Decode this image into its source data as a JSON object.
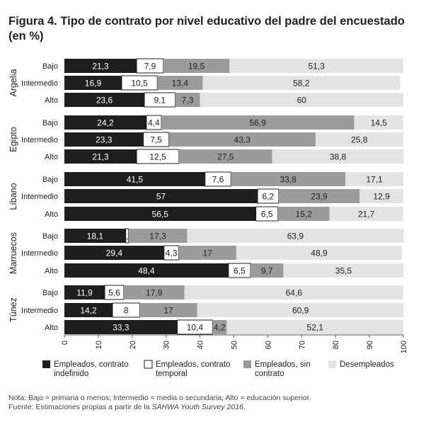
{
  "title": "Figura 4. Tipo de contrato por nivel educativo del padre del encuestado (en %)",
  "chart_data": {
    "type": "bar",
    "orientation": "horizontal",
    "stacked": true,
    "xlim": [
      0,
      100
    ],
    "xticks": [
      0,
      10,
      20,
      30,
      40,
      50,
      60,
      70,
      80,
      90,
      100
    ],
    "categories": [
      "Bajo",
      "Intermedio",
      "Alto"
    ],
    "series": [
      {
        "name": "Empleados, contrato indefinido",
        "color": "#1e1e1e"
      },
      {
        "name": "Empleados, contrato temporal",
        "color": "#ffffff"
      },
      {
        "name": "Empleados, sin contrato",
        "color": "#9b9b9b"
      },
      {
        "name": "Desempleados",
        "color": "#e3e3e3"
      }
    ],
    "groups": [
      {
        "name": "Argelia",
        "rows": [
          {
            "label": "Bajo",
            "values": [
              21.3,
              7.9,
              19.5,
              51.3
            ],
            "labels": [
              "21,3",
              "7,9",
              "19,5",
              "51,3"
            ]
          },
          {
            "label": "Intermedio",
            "values": [
              16.9,
              10.5,
              13.4,
              58.2
            ],
            "labels": [
              "16,9",
              "10,5",
              "13,4",
              "58,2"
            ]
          },
          {
            "label": "Alto",
            "values": [
              23.6,
              9.1,
              7.3,
              60
            ],
            "labels": [
              "23,6",
              "9,1",
              "7,3",
              "60"
            ]
          }
        ]
      },
      {
        "name": "Egipto",
        "rows": [
          {
            "label": "Bajo",
            "values": [
              24.2,
              4.4,
              56.9,
              14.5
            ],
            "labels": [
              "24,2",
              "4,4",
              "56,9",
              "14,5"
            ]
          },
          {
            "label": "Intermedio",
            "values": [
              23.3,
              7.5,
              43.3,
              25.8
            ],
            "labels": [
              "23,3",
              "7,5",
              "43,3",
              "25,8"
            ]
          },
          {
            "label": "Alto",
            "values": [
              21.3,
              12.5,
              27.5,
              38.8
            ],
            "labels": [
              "21,3",
              "12,5",
              "27,5",
              "38,8"
            ]
          }
        ]
      },
      {
        "name": "Líbano",
        "rows": [
          {
            "label": "Bajo",
            "values": [
              41.5,
              7.6,
              33.8,
              17.1
            ],
            "labels": [
              "41,5",
              "7,6",
              "33,8",
              "17,1"
            ]
          },
          {
            "label": "Intermedio",
            "values": [
              57,
              6.2,
              23.9,
              12.9
            ],
            "labels": [
              "57",
              "6,2",
              "23,9",
              "12,9"
            ]
          },
          {
            "label": "Alto",
            "values": [
              56.5,
              6.5,
              15.2,
              21.7
            ],
            "labels": [
              "56,5",
              "6,5",
              "15,2",
              "21,7"
            ]
          }
        ]
      },
      {
        "name": "Marruecos",
        "rows": [
          {
            "label": "Bajo",
            "values": [
              18.1,
              0.8,
              17.3,
              63.9
            ],
            "labels": [
              "18,1",
              "0,8",
              "17,3",
              "63,9"
            ]
          },
          {
            "label": "Intermedio",
            "values": [
              29.4,
              4.3,
              17,
              48.9
            ],
            "labels": [
              "29,4",
              "4,3",
              "17",
              "48,9"
            ]
          },
          {
            "label": "Alto",
            "values": [
              48.4,
              6.5,
              9.7,
              35.5
            ],
            "labels": [
              "48,4",
              "6,5",
              "9,7",
              "35,5"
            ]
          }
        ]
      },
      {
        "name": "Túnez",
        "rows": [
          {
            "label": "Bajo",
            "values": [
              11.9,
              5.6,
              17.9,
              64.6
            ],
            "labels": [
              "11,9",
              "5,6",
              "17,9",
              "64,6"
            ]
          },
          {
            "label": "Intermedio",
            "values": [
              14.2,
              8,
              17,
              60.9
            ],
            "labels": [
              "14,2",
              "8",
              "17",
              "60,9"
            ]
          },
          {
            "label": "Alto",
            "values": [
              33.3,
              10.4,
              4.2,
              52.1
            ],
            "labels": [
              "33,3",
              "10,4",
              "4,2",
              "52,1"
            ]
          }
        ]
      }
    ],
    "legend": {
      "placement": "bottom",
      "items": [
        [
          "Empleados, contrato",
          "indefinido"
        ],
        [
          "Empleados, contrato",
          "temporal"
        ],
        [
          "Empleados, sin",
          "contrato"
        ],
        [
          "Desempleados"
        ]
      ]
    }
  },
  "note": {
    "line1": "Nota: Bajo = primaria o menos; Intermedio = media o secundaria; Alto = educación superior.",
    "line2_prefix": "Fuente: Estimaciones propias a partir de la ",
    "line2_italic": "SAHWA Youth Survey 2016",
    "line2_suffix": "."
  }
}
